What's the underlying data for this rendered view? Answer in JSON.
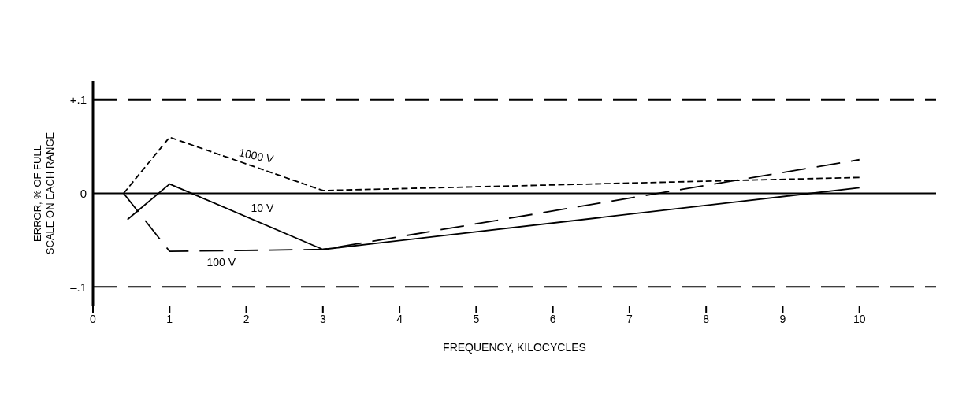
{
  "chart_data": {
    "type": "line",
    "xlabel": "FREQUENCY, KILOCYCLES",
    "ylabel": "ERROR, % OF FULL\nSCALE ON EACH RANGE",
    "xlim": [
      0,
      11
    ],
    "ylim": [
      -0.12,
      0.12
    ],
    "xticks": [
      0,
      1,
      2,
      3,
      4,
      5,
      6,
      7,
      8,
      9,
      10
    ],
    "yticks": [
      {
        "value": -0.1,
        "label": "–.1"
      },
      {
        "value": 0,
        "label": "0"
      },
      {
        "value": 0.1,
        "label": "+.1"
      }
    ],
    "grid": false,
    "legend": false,
    "marker": "none",
    "series": [
      {
        "name": "1000 V",
        "color": "#000000",
        "line_style": "dashed",
        "x": [
          0.4,
          1,
          3,
          10
        ],
        "values": [
          0,
          0.06,
          0.003,
          0.017
        ]
      },
      {
        "name": "10 V",
        "color": "#000000",
        "line_style": "solid",
        "x": [
          0.45,
          1,
          3,
          10
        ],
        "values": [
          -0.028,
          0.01,
          -0.06,
          0.006
        ]
      },
      {
        "name": "100 V",
        "color": "#000000",
        "line_style": "dashed",
        "x": [
          0.4,
          1,
          3,
          10
        ],
        "values": [
          0,
          -0.062,
          -0.06,
          0.036
        ]
      }
    ],
    "ref_lines": [
      {
        "axis": "y",
        "value": 0.1,
        "color": "#000000",
        "line_style": "dashed"
      },
      {
        "axis": "y",
        "value": 0,
        "color": "#000000",
        "line_style": "solid"
      },
      {
        "axis": "y",
        "value": -0.1,
        "color": "#000000",
        "line_style": "dashed"
      }
    ]
  }
}
